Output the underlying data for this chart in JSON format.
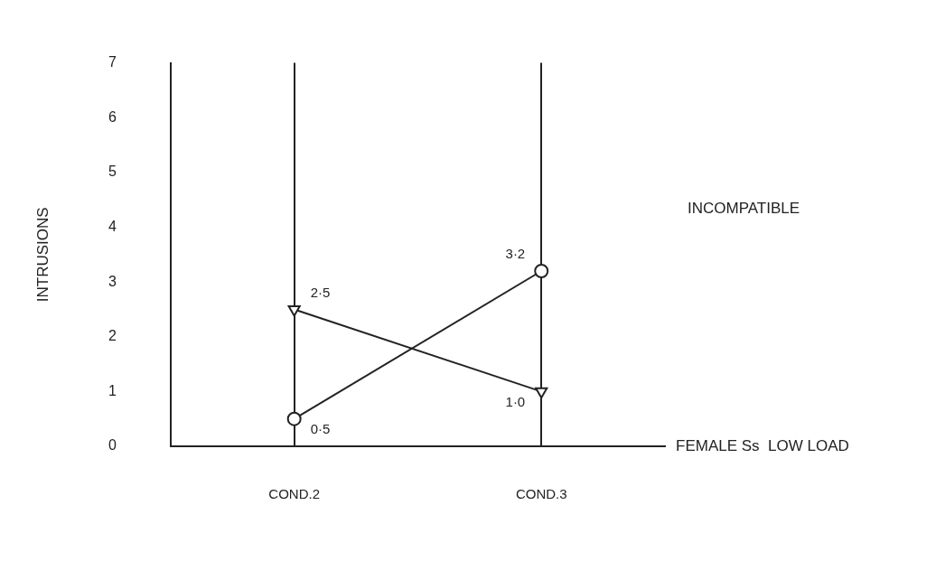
{
  "chart_data": {
    "type": "line",
    "xlabel": "FEMALE Ss  LOW LOAD",
    "ylabel": "INTRUSIONS",
    "categories": [
      "COND.2",
      "COND.3"
    ],
    "series": [
      {
        "color": "#222222",
        "values": [
          2.5,
          1.0
        ],
        "value_labels": [
          "2·5",
          "1·0"
        ],
        "marker": "triangle"
      },
      {
        "color": "#222222",
        "values": [
          0.5,
          3.2
        ],
        "value_labels": [
          "0·5",
          "3·2"
        ],
        "marker": "circle"
      }
    ],
    "ylim": [
      0,
      7
    ],
    "yticks": [
      0,
      1,
      2,
      3,
      4,
      5,
      6,
      7
    ],
    "grid": "x",
    "legend": false,
    "annotations": [
      "INCOMPATIBLE"
    ]
  }
}
